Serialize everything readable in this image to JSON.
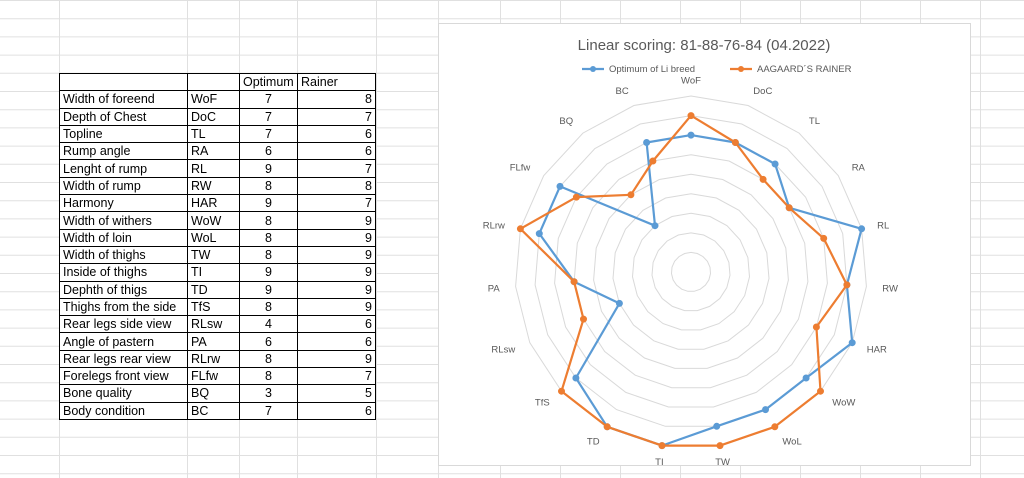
{
  "table": {
    "headers": [
      "",
      "",
      "Optimum",
      "Rainer"
    ],
    "rows": [
      [
        "Width of foreend",
        "WoF",
        "7",
        "8"
      ],
      [
        "Depth of Chest",
        "DoC",
        "7",
        "7"
      ],
      [
        "Topline",
        "TL",
        "7",
        "6"
      ],
      [
        "Rump angle",
        "RA",
        "6",
        "6"
      ],
      [
        "Lenght of rump",
        "RL",
        "9",
        "7"
      ],
      [
        "Width of rump",
        "RW",
        "8",
        "8"
      ],
      [
        "Harmony",
        "HAR",
        "9",
        "7"
      ],
      [
        "Width of withers",
        "WoW",
        "8",
        "9"
      ],
      [
        "Width of loin",
        "WoL",
        "8",
        "9"
      ],
      [
        "Width of thighs",
        "TW",
        "8",
        "9"
      ],
      [
        "Inside of thighs",
        "TI",
        "9",
        "9"
      ],
      [
        "Dephth of thigs",
        "TD",
        "9",
        "9"
      ],
      [
        "Thighs from the side",
        "TfS",
        "8",
        "9"
      ],
      [
        "Rear legs side view",
        "RLsw",
        "4",
        "6"
      ],
      [
        "Angle of pastern",
        "PA",
        "6",
        "6"
      ],
      [
        "Rear legs rear view",
        "RLrw",
        "8",
        "9"
      ],
      [
        "Forelegs front view",
        "FLfw",
        "8",
        "7"
      ],
      [
        "Bone quality",
        "BQ",
        "3",
        "5"
      ],
      [
        "Body condition",
        "BC",
        "7",
        "6"
      ]
    ]
  },
  "chart_data": {
    "type": "radar",
    "title": "Linear scoring: 81-88-76-84  (04.2022)",
    "categories": [
      "WoF",
      "DoC",
      "TL",
      "RA",
      "RL",
      "RW",
      "HAR",
      "WoW",
      "WoL",
      "TW",
      "TI",
      "TD",
      "TfS",
      "RLsw",
      "PA",
      "RLrw",
      "FLfw",
      "BQ",
      "BC"
    ],
    "series": [
      {
        "name": "Optimum of Li breed",
        "color": "#5b9bd5",
        "values": [
          7,
          7,
          7,
          6,
          9,
          8,
          9,
          8,
          8,
          8,
          9,
          9,
          8,
          4,
          6,
          8,
          8,
          3,
          7
        ]
      },
      {
        "name": "AAGAARD´S RAINER",
        "color": "#ed7d31",
        "values": [
          8,
          7,
          6,
          6,
          7,
          8,
          7,
          9,
          9,
          9,
          9,
          9,
          9,
          6,
          6,
          9,
          7,
          5,
          6
        ]
      }
    ],
    "rlim": [
      0,
      9
    ],
    "ring_step": 1,
    "grid": true,
    "legend": "top"
  }
}
